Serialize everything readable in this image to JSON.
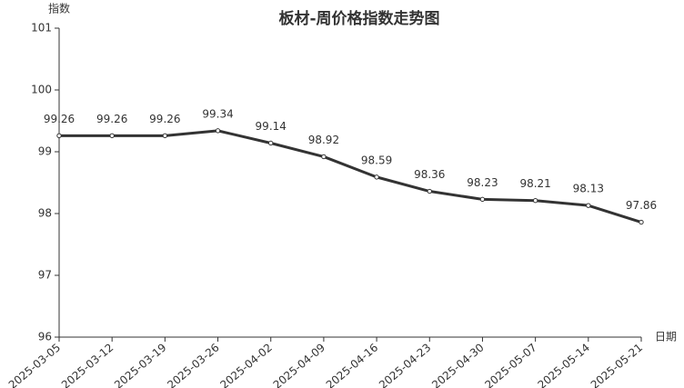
{
  "chart_data": {
    "type": "line",
    "title": "板材-周价格指数走势图",
    "y_label": "指数",
    "x_label": "日期",
    "categories": [
      "2025-03-05",
      "2025-03-12",
      "2025-03-19",
      "2025-03-26",
      "2025-04-02",
      "2025-04-09",
      "2025-04-16",
      "2025-04-23",
      "2025-04-30",
      "2025-05-07",
      "2025-05-14",
      "2025-05-21"
    ],
    "series": [
      {
        "name": "板材",
        "color": "#333333",
        "values": [
          99.26,
          99.26,
          99.26,
          99.34,
          99.14,
          98.92,
          98.59,
          98.36,
          98.23,
          98.21,
          98.13,
          97.86
        ]
      }
    ],
    "ylim": [
      96,
      101
    ],
    "yticks": [
      96,
      97,
      98,
      99,
      100,
      101
    ],
    "grid": false
  }
}
